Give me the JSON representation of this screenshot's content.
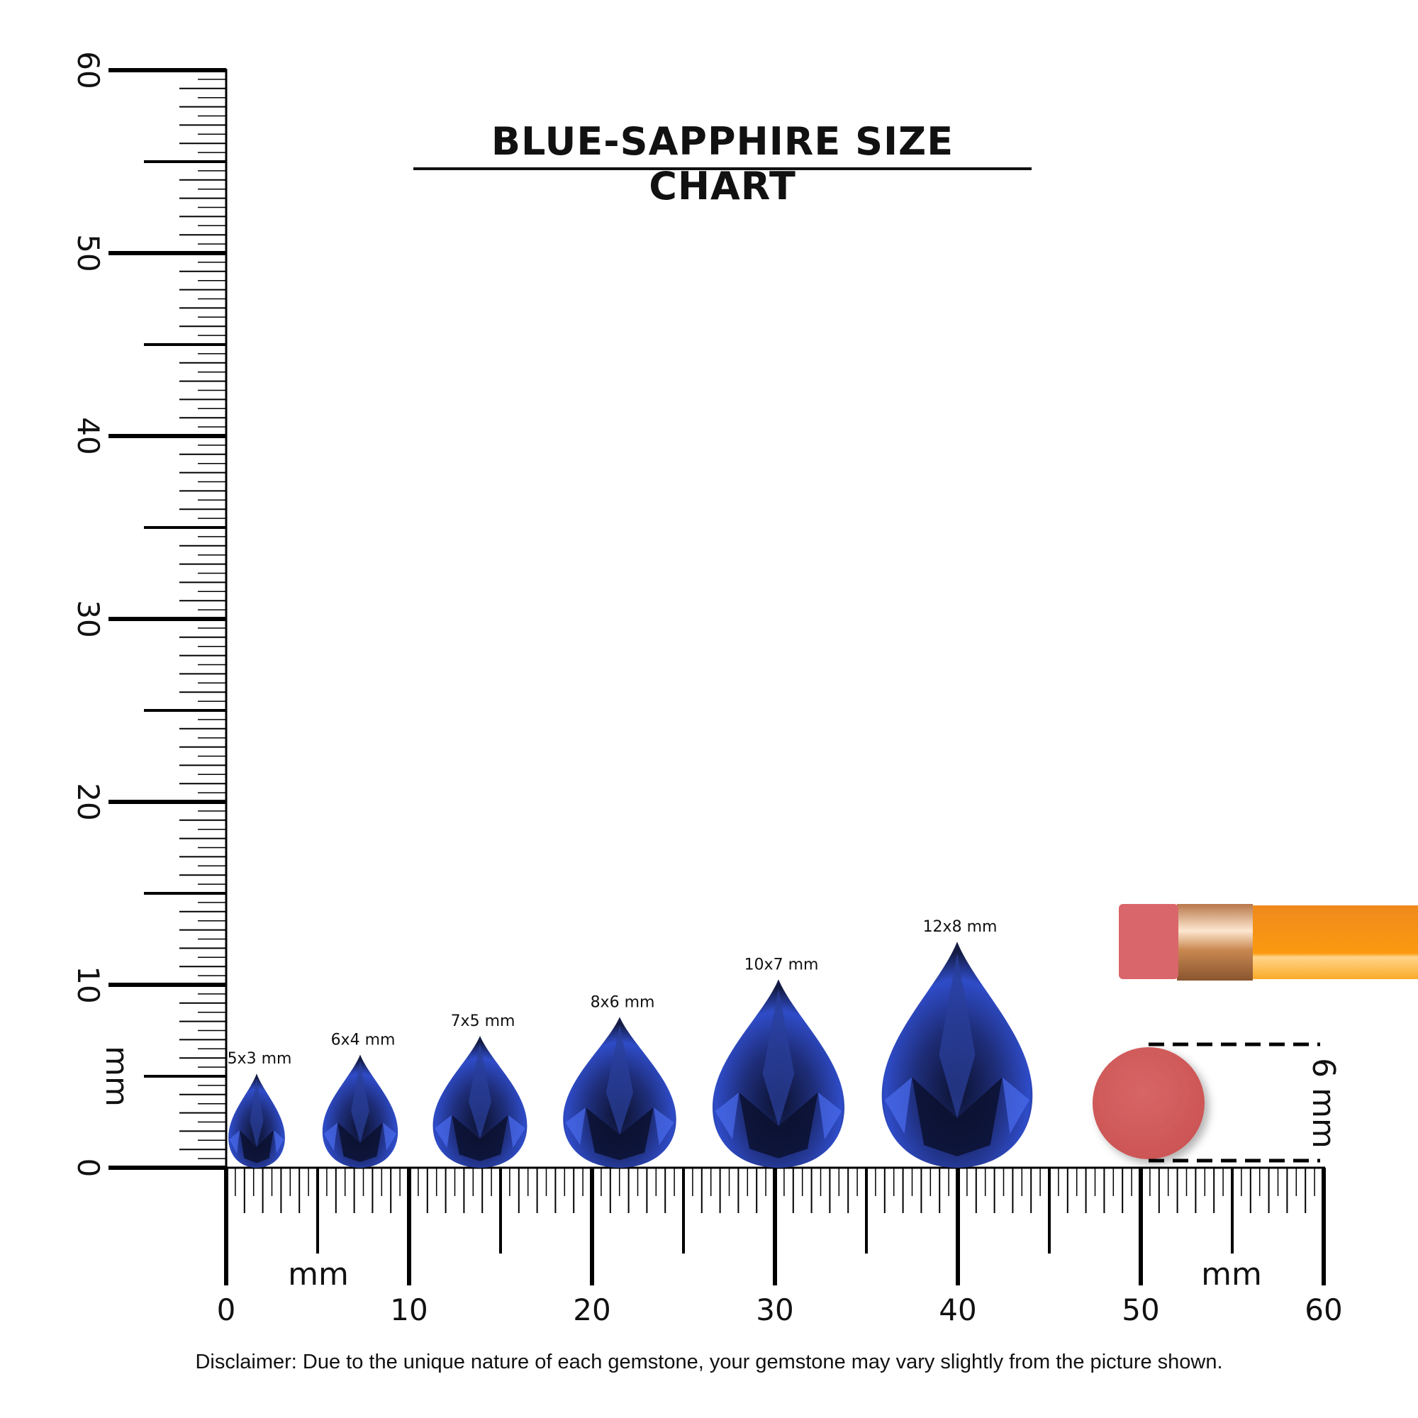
{
  "title": "BLUE-SAPPHIRE SIZE CHART",
  "disclaimer": "Disclaimer: Due to the unique nature of each gemstone, your gemstone may vary slightly from the picture shown.",
  "ruler": {
    "unit_label": "mm",
    "range": [
      0,
      60
    ],
    "major_labels": [
      "0",
      "10",
      "20",
      "30",
      "40",
      "50",
      "60"
    ]
  },
  "gems": [
    {
      "label": "5x3 mm",
      "length_mm": 5,
      "width_mm": 3
    },
    {
      "label": "6x4 mm",
      "length_mm": 6,
      "width_mm": 4
    },
    {
      "label": "7x5 mm",
      "length_mm": 7,
      "width_mm": 5
    },
    {
      "label": "8x6 mm",
      "length_mm": 8,
      "width_mm": 6
    },
    {
      "label": "10x7 mm",
      "length_mm": 10,
      "width_mm": 7
    },
    {
      "label": "12x8 mm",
      "length_mm": 12,
      "width_mm": 8
    }
  ],
  "reference": {
    "label": "6 mm",
    "diameter_mm": 6
  },
  "colors": {
    "gem_dark": "#141c45",
    "gem_light": "#3a5be0",
    "eraser": "#d35a5a",
    "pencil": "#f7941d",
    "ferrule": "#d9a070"
  }
}
